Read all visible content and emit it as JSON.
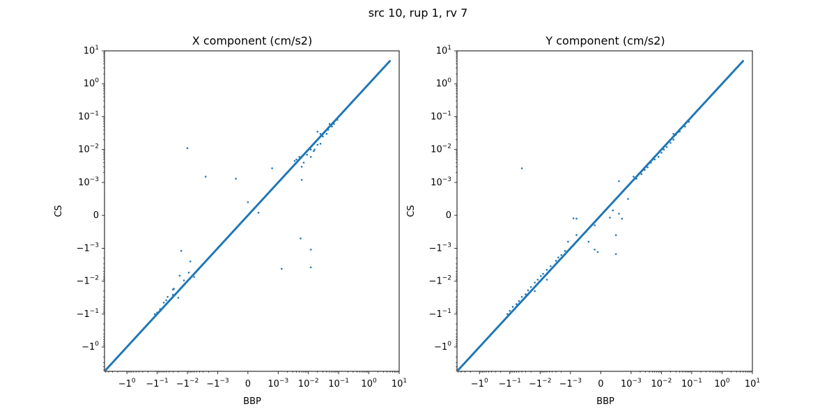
{
  "figure": {
    "suptitle": "src 10, rup 1, rv 7"
  },
  "chart_data": [
    {
      "type": "scatter",
      "title": "X component (cm/s2)",
      "xlabel": "BBP",
      "ylabel": "CS",
      "scale": "symlog",
      "linthresh": 0.001,
      "xlim": [
        -5.5,
        10
      ],
      "ylim": [
        -5.5,
        10
      ],
      "x_ticks": [
        "-1",
        "-0.1",
        "-0.01",
        "-0.001",
        "0",
        "0.001",
        "0.01",
        "0.1",
        "1",
        "10"
      ],
      "x_tick_labels": [
        {
          "base": "−1",
          "exp": "0"
        },
        {
          "base": "−1",
          "exp": "−1"
        },
        {
          "base": "−1",
          "exp": "−2"
        },
        {
          "base": "−1",
          "exp": "−3"
        },
        {
          "base": "0",
          "exp": ""
        },
        {
          "base": "10",
          "exp": "−3"
        },
        {
          "base": "10",
          "exp": "−2"
        },
        {
          "base": "10",
          "exp": "−1"
        },
        {
          "base": "10",
          "exp": "0"
        },
        {
          "base": "10",
          "exp": "1"
        }
      ],
      "y_ticks": [
        "-1",
        "-0.1",
        "-0.01",
        "-0.001",
        "0",
        "0.001",
        "0.01",
        "0.1",
        "1",
        "10"
      ],
      "y_tick_labels": [
        {
          "base": "−1",
          "exp": "0"
        },
        {
          "base": "−1",
          "exp": "−1"
        },
        {
          "base": "−1",
          "exp": "−2"
        },
        {
          "base": "−1",
          "exp": "−3"
        },
        {
          "base": "0",
          "exp": ""
        },
        {
          "base": "10",
          "exp": "−3"
        },
        {
          "base": "10",
          "exp": "−2"
        },
        {
          "base": "10",
          "exp": "−1"
        },
        {
          "base": "10",
          "exp": "0"
        },
        {
          "base": "10",
          "exp": "1"
        }
      ],
      "grid": false,
      "legend": "none",
      "color": "#1f77b4",
      "diagonal_range": [
        -4.9,
        4.9
      ],
      "points": [
        [
          -0.01,
          0.011
        ],
        [
          -0.0025,
          0.0015
        ],
        [
          -0.0004,
          0.0013
        ],
        [
          0.0008,
          0.0027
        ],
        [
          0.006,
          0.0012
        ],
        [
          0.0,
          0.0004
        ],
        [
          0.00035,
          8e-05
        ],
        [
          -0.0005,
          -0.0005
        ],
        [
          0.0055,
          -0.0007
        ],
        [
          0.012,
          -0.0011
        ],
        [
          0.0013,
          -0.0042
        ],
        [
          0.012,
          -0.0038
        ],
        [
          -0.016,
          -0.0012
        ],
        [
          -0.008,
          -0.0025
        ],
        [
          -0.009,
          -0.0055
        ],
        [
          -0.018,
          -0.0068
        ],
        [
          -0.013,
          -0.0095
        ],
        [
          -0.006,
          -0.0075
        ],
        [
          -0.028,
          -0.017
        ],
        [
          -0.03,
          -0.018
        ],
        [
          -0.045,
          -0.03
        ],
        [
          -0.03,
          -0.026
        ],
        [
          -0.02,
          -0.032
        ],
        [
          -0.06,
          -0.045
        ],
        [
          -0.05,
          -0.038
        ],
        [
          -0.08,
          -0.07
        ],
        [
          -0.1,
          -0.09
        ],
        [
          -0.12,
          -0.1
        ],
        [
          0.004,
          0.005
        ],
        [
          0.005,
          0.006
        ],
        [
          0.007,
          0.004
        ],
        [
          0.009,
          0.007
        ],
        [
          0.012,
          0.006
        ],
        [
          0.016,
          0.01
        ],
        [
          0.02,
          0.014
        ],
        [
          0.025,
          0.015
        ],
        [
          0.025,
          0.03
        ],
        [
          0.03,
          0.025
        ],
        [
          0.04,
          0.03
        ],
        [
          0.045,
          0.04
        ],
        [
          0.06,
          0.05
        ],
        [
          0.07,
          0.06
        ],
        [
          0.09,
          0.08
        ],
        [
          0.02,
          0.035
        ],
        [
          0.012,
          0.01
        ],
        [
          0.008,
          0.008
        ],
        [
          0.015,
          0.009
        ],
        [
          0.05,
          0.06
        ],
        [
          0.0035,
          0.0045
        ],
        [
          0.006,
          0.003
        ]
      ]
    },
    {
      "type": "scatter",
      "title": "Y component (cm/s2)",
      "xlabel": "BBP",
      "ylabel": "CS",
      "scale": "symlog",
      "linthresh": 0.001,
      "xlim": [
        -5.5,
        10
      ],
      "ylim": [
        -5.5,
        10
      ],
      "x_ticks": [
        "-1",
        "-0.1",
        "-0.01",
        "-0.001",
        "0",
        "0.001",
        "0.01",
        "0.1",
        "1",
        "10"
      ],
      "x_tick_labels": [
        {
          "base": "−1",
          "exp": "0"
        },
        {
          "base": "−1",
          "exp": "−1"
        },
        {
          "base": "−1",
          "exp": "−2"
        },
        {
          "base": "−1",
          "exp": "−3"
        },
        {
          "base": "0",
          "exp": ""
        },
        {
          "base": "10",
          "exp": "−3"
        },
        {
          "base": "10",
          "exp": "−2"
        },
        {
          "base": "10",
          "exp": "−1"
        },
        {
          "base": "10",
          "exp": "0"
        },
        {
          "base": "10",
          "exp": "1"
        }
      ],
      "y_ticks": [
        "-1",
        "-0.1",
        "-0.01",
        "-0.001",
        "0",
        "0.001",
        "0.01",
        "0.1",
        "1",
        "10"
      ],
      "y_tick_labels": [
        {
          "base": "−1",
          "exp": "0"
        },
        {
          "base": "−1",
          "exp": "−1"
        },
        {
          "base": "−1",
          "exp": "−2"
        },
        {
          "base": "−1",
          "exp": "−3"
        },
        {
          "base": "0",
          "exp": ""
        },
        {
          "base": "10",
          "exp": "−3"
        },
        {
          "base": "10",
          "exp": "−2"
        },
        {
          "base": "10",
          "exp": "−1"
        },
        {
          "base": "10",
          "exp": "0"
        },
        {
          "base": "10",
          "exp": "1"
        }
      ],
      "grid": false,
      "legend": "none",
      "color": "#1f77b4",
      "diagonal_range": [
        -4.9,
        4.9
      ],
      "points": [
        [
          -0.04,
          0.0027
        ],
        [
          -0.0009,
          -9e-05
        ],
        [
          -0.0008,
          -0.0001
        ],
        [
          0.0004,
          0.00015
        ],
        [
          0.0003,
          -7e-05
        ],
        [
          0.0006,
          5e-05
        ],
        [
          0.0007,
          -0.0001
        ],
        [
          0.0009,
          0.0005
        ],
        [
          0.0006,
          0.0011
        ],
        [
          0.0005,
          -0.0006
        ],
        [
          0.0005,
          -0.0015
        ],
        [
          -0.0002,
          -0.0003
        ],
        [
          -0.0002,
          -0.0011
        ],
        [
          -0.0001,
          -0.0013
        ],
        [
          -0.0004,
          -0.0008
        ],
        [
          -0.0008,
          -0.0006
        ],
        [
          -0.0012,
          -0.0008
        ],
        [
          -0.0015,
          -0.0012
        ],
        [
          -0.002,
          -0.0016
        ],
        [
          -0.0025,
          -0.0019
        ],
        [
          -0.003,
          -0.0024
        ],
        [
          -0.0045,
          -0.0035
        ],
        [
          -0.006,
          -0.0045
        ],
        [
          -0.008,
          -0.006
        ],
        [
          -0.0095,
          -0.007
        ],
        [
          -0.012,
          -0.009
        ],
        [
          -0.015,
          -0.011
        ],
        [
          -0.02,
          -0.015
        ],
        [
          -0.025,
          -0.019
        ],
        [
          -0.03,
          -0.025
        ],
        [
          -0.04,
          -0.03
        ],
        [
          -0.05,
          -0.04
        ],
        [
          -0.06,
          -0.05
        ],
        [
          -0.08,
          -0.06
        ],
        [
          -0.1,
          -0.08
        ],
        [
          -0.12,
          -0.1
        ],
        [
          -0.015,
          -0.02
        ],
        [
          -0.006,
          -0.009
        ],
        [
          0.0012,
          0.0015
        ],
        [
          0.0015,
          0.0013
        ],
        [
          0.0022,
          0.0018
        ],
        [
          0.0028,
          0.0024
        ],
        [
          0.0035,
          0.0029
        ],
        [
          0.0045,
          0.004
        ],
        [
          0.006,
          0.005
        ],
        [
          0.008,
          0.006
        ],
        [
          0.01,
          0.008
        ],
        [
          0.012,
          0.01
        ],
        [
          0.015,
          0.012
        ],
        [
          0.02,
          0.016
        ],
        [
          0.025,
          0.02
        ],
        [
          0.025,
          0.03
        ],
        [
          0.03,
          0.028
        ],
        [
          0.04,
          0.035
        ],
        [
          0.06,
          0.05
        ],
        [
          0.08,
          0.07
        ]
      ]
    }
  ]
}
